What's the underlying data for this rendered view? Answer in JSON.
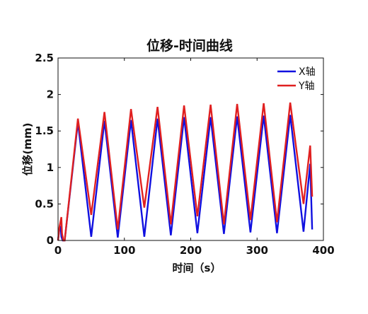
{
  "chart_data": {
    "type": "line",
    "title": "位移-时间曲线",
    "xlabel": "时间（s）",
    "ylabel": "位移(mm)",
    "xlim": [
      0,
      400
    ],
    "ylim": [
      0,
      2.5
    ],
    "xticks": [
      0,
      100,
      200,
      300,
      400
    ],
    "yticks": [
      0,
      0.5,
      1,
      1.5,
      2,
      2.5
    ],
    "xtick_labels": [
      "0",
      "100",
      "200",
      "300",
      "400"
    ],
    "ytick_labels": [
      "0",
      "0.5",
      "1",
      "1.5",
      "2",
      "2.5"
    ],
    "grid": false,
    "legend_position": "top-right",
    "series": [
      {
        "name": "X轴",
        "color": "#1010e0",
        "x": [
          0,
          2,
          4,
          5,
          7,
          8,
          10,
          30,
          50,
          70,
          90,
          110,
          130,
          150,
          170,
          190,
          210,
          230,
          250,
          270,
          290,
          310,
          330,
          350,
          370,
          380,
          383
        ],
        "y": [
          0,
          0.15,
          0.18,
          0.05,
          0.0,
          0.0,
          0.0,
          1.62,
          0.05,
          1.64,
          0.04,
          1.65,
          0.05,
          1.67,
          0.07,
          1.69,
          0.1,
          1.69,
          0.09,
          1.7,
          0.11,
          1.71,
          0.1,
          1.72,
          0.12,
          1.05,
          0.15
        ]
      },
      {
        "name": "Y轴",
        "color": "#e02020",
        "x": [
          0,
          2,
          5,
          6,
          8,
          10,
          30,
          50,
          70,
          90,
          110,
          130,
          150,
          170,
          190,
          210,
          230,
          250,
          270,
          290,
          310,
          330,
          350,
          370,
          380,
          383
        ],
        "y": [
          0,
          0.18,
          0.32,
          0.1,
          0.0,
          0.0,
          1.67,
          0.35,
          1.76,
          0.15,
          1.8,
          0.45,
          1.83,
          0.22,
          1.85,
          0.33,
          1.86,
          0.22,
          1.87,
          0.28,
          1.88,
          0.25,
          1.89,
          0.5,
          1.3,
          0.6
        ]
      }
    ]
  }
}
